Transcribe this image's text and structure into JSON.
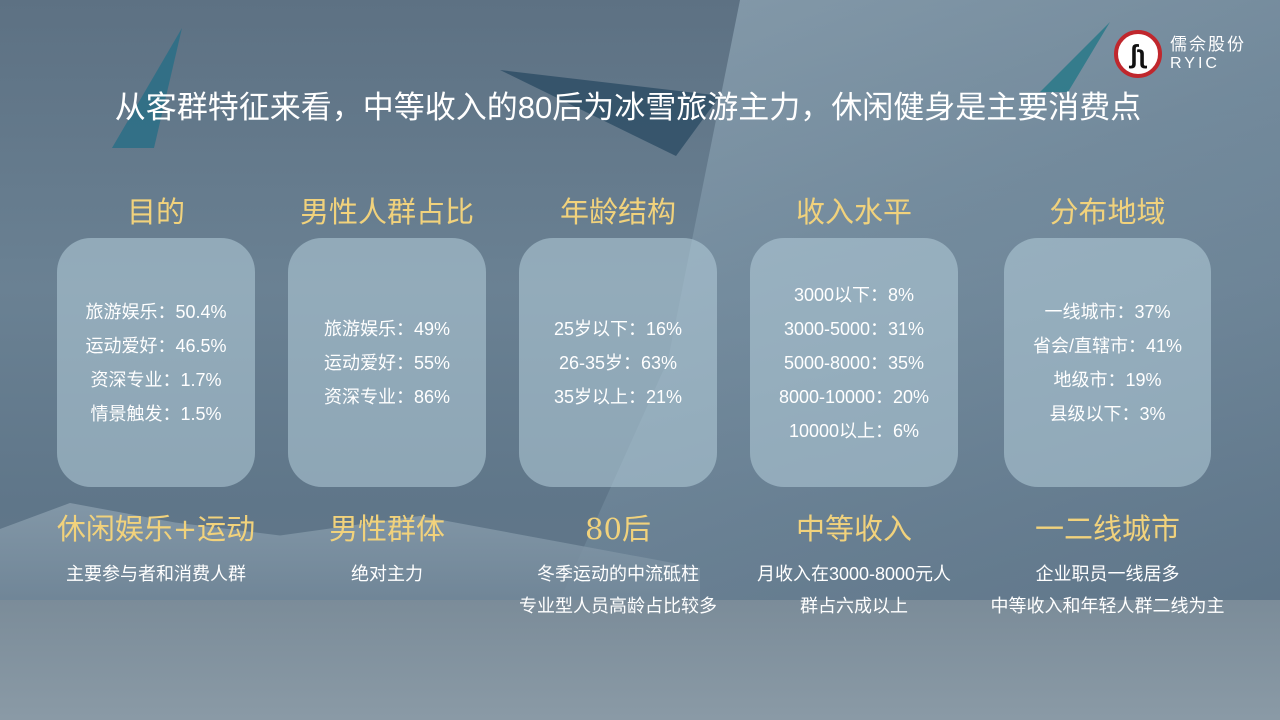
{
  "title": "从客群特征来看，中等收入的80后为冰雪旅游主力，休闲健身是主要消费点",
  "logo": {
    "cn": "儒佘股份",
    "en": "RYIC"
  },
  "colors": {
    "gold": "#f1d27c",
    "background": "#5d7183",
    "logo_ring": "#c0272d"
  },
  "columns": [
    {
      "heading": "目的",
      "items": [
        "旅游娱乐：50.4%",
        "运动爱好：46.5%",
        "资深专业：1.7%",
        "情景触发：1.5%"
      ],
      "summary": "休闲娱乐+运动",
      "notes": [
        "主要参与者和消费人群"
      ]
    },
    {
      "heading": "男性人群占比",
      "items": [
        "旅游娱乐：49%",
        "运动爱好：55%",
        "资深专业：86%"
      ],
      "summary": "男性群体",
      "notes": [
        "绝对主力"
      ]
    },
    {
      "heading": "年龄结构",
      "items": [
        "25岁以下：16%",
        "26-35岁：63%",
        "35岁以上：21%"
      ],
      "summary": "80后",
      "notes": [
        "冬季运动的中流砥柱",
        "专业型人员高龄占比较多"
      ]
    },
    {
      "heading": "收入水平",
      "items": [
        "3000以下：8%",
        "3000-5000：31%",
        "5000-8000：35%",
        "8000-10000：20%",
        "10000以上：6%"
      ],
      "summary": "中等收入",
      "notes": [
        "月收入在3000-8000元人",
        "群占六成以上"
      ]
    },
    {
      "heading": "分布地域",
      "items": [
        "一线城市：37%",
        "省会/直辖市：41%",
        "地级市：19%",
        "县级以下：3%"
      ],
      "summary": "一二线城市",
      "notes": [
        "企业职员一线居多",
        "中等收入和年轻人群二线为主"
      ]
    }
  ]
}
